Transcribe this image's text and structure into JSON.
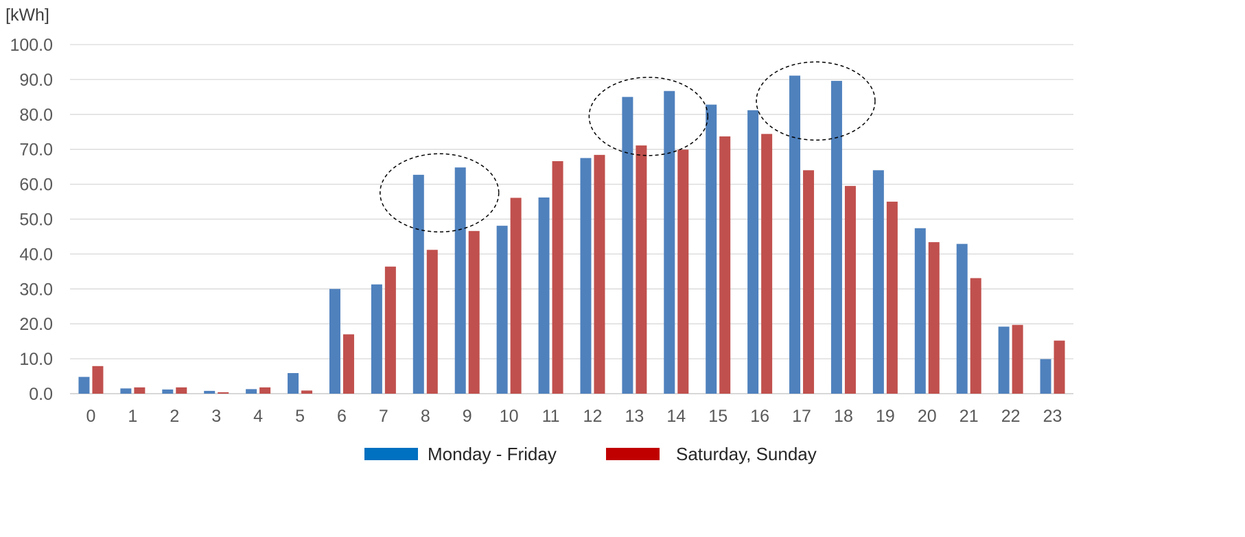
{
  "chart_data": {
    "type": "bar",
    "ylabel": "[kWh]",
    "ylim": [
      0,
      100
    ],
    "yticks": [
      "0.0",
      "10.0",
      "20.0",
      "30.0",
      "40.0",
      "50.0",
      "60.0",
      "70.0",
      "80.0",
      "90.0",
      "100.0"
    ],
    "categories": [
      "0",
      "1",
      "2",
      "3",
      "4",
      "5",
      "6",
      "7",
      "8",
      "9",
      "10",
      "11",
      "12",
      "13",
      "14",
      "15",
      "16",
      "17",
      "18",
      "19",
      "20",
      "21",
      "22",
      "23"
    ],
    "series": [
      {
        "name": "Monday - Friday",
        "color": "#4F81BD",
        "legend_color": "#0070C0",
        "values": [
          4.8,
          1.5,
          1.2,
          0.8,
          1.3,
          5.9,
          30.0,
          31.3,
          62.7,
          64.8,
          48.1,
          56.2,
          67.5,
          85.0,
          86.7,
          82.8,
          81.2,
          91.1,
          89.6,
          64.0,
          47.4,
          42.9,
          19.2,
          9.9
        ]
      },
      {
        "name": "Saturday, Sunday",
        "color": "#C0504D",
        "legend_color": "#C00000",
        "values": [
          7.9,
          1.8,
          1.8,
          0.4,
          1.8,
          0.9,
          17.0,
          36.4,
          41.2,
          46.6,
          56.1,
          66.6,
          68.4,
          71.1,
          69.9,
          73.7,
          74.4,
          64.0,
          59.5,
          55.0,
          43.4,
          33.1,
          19.7,
          15.2
        ]
      }
    ],
    "highlight_groups": [
      [
        "8",
        "9"
      ],
      [
        "13",
        "14"
      ],
      [
        "17",
        "18"
      ]
    ],
    "grid": true,
    "legend_position": "bottom"
  }
}
